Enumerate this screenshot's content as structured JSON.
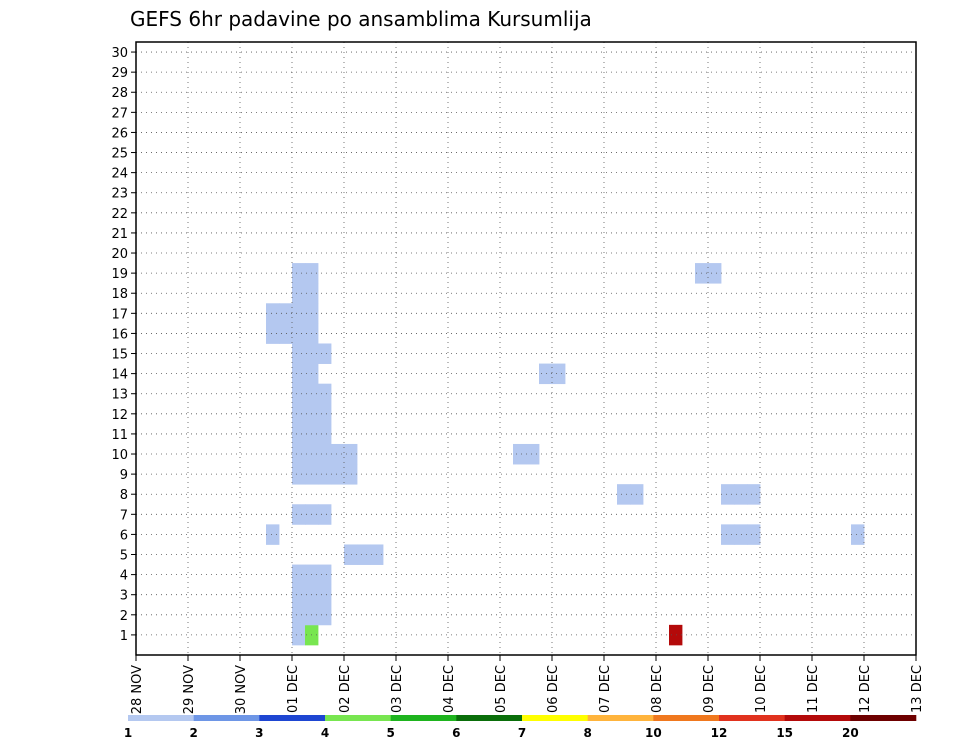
{
  "chart_data": {
    "type": "heatmap",
    "title": "GEFS 6hr padavine po ansamblima Kursumlija",
    "y_ticks": [
      "1",
      "2",
      "3",
      "4",
      "5",
      "6",
      "7",
      "8",
      "9",
      "10",
      "11",
      "12",
      "13",
      "14",
      "15",
      "16",
      "17",
      "18",
      "19",
      "20",
      "21",
      "22",
      "23",
      "24",
      "25",
      "26",
      "27",
      "28",
      "29",
      "30"
    ],
    "x_ticks": [
      "28 NOV",
      "29 NOV",
      "30 NOV",
      "01 DEC",
      "02 DEC",
      "03 DEC",
      "04 DEC",
      "05 DEC",
      "06 DEC",
      "07 DEC",
      "08 DEC",
      "09 DEC",
      "10 DEC",
      "11 DEC",
      "12 DEC",
      "13 DEC"
    ],
    "time_steps": 60,
    "grid": "dotted",
    "legend": "bottom",
    "colorbar": {
      "labels": [
        "1",
        "2",
        "3",
        "4",
        "5",
        "6",
        "7",
        "8",
        "10",
        "12",
        "15",
        "20"
      ],
      "colors": [
        "#b4c8f0",
        "#6e96e6",
        "#1e46d2",
        "#78e650",
        "#1eb41e",
        "#0a6e0a",
        "#ffff00",
        "#ffb43c",
        "#f0781e",
        "#e1321e",
        "#b40a0a",
        "#6e0000"
      ]
    },
    "cells": [
      [
        1,
        12,
        0
      ],
      [
        1,
        13,
        3
      ],
      [
        1,
        41,
        10
      ],
      [
        2,
        12,
        0
      ],
      [
        2,
        13,
        0
      ],
      [
        2,
        14,
        0
      ],
      [
        3,
        12,
        0
      ],
      [
        3,
        13,
        0
      ],
      [
        3,
        14,
        0
      ],
      [
        4,
        12,
        0
      ],
      [
        4,
        13,
        0
      ],
      [
        4,
        14,
        0
      ],
      [
        5,
        16,
        0
      ],
      [
        5,
        17,
        0
      ],
      [
        5,
        18,
        0
      ],
      [
        6,
        10,
        0
      ],
      [
        6,
        45,
        0
      ],
      [
        6,
        46,
        0
      ],
      [
        6,
        47,
        0
      ],
      [
        6,
        55,
        0
      ],
      [
        7,
        12,
        0
      ],
      [
        7,
        13,
        0
      ],
      [
        7,
        14,
        0
      ],
      [
        8,
        37,
        0
      ],
      [
        8,
        38,
        0
      ],
      [
        8,
        45,
        0
      ],
      [
        8,
        46,
        0
      ],
      [
        8,
        47,
        0
      ],
      [
        9,
        12,
        0
      ],
      [
        9,
        13,
        0
      ],
      [
        9,
        14,
        0
      ],
      [
        9,
        15,
        0
      ],
      [
        9,
        16,
        0
      ],
      [
        10,
        12,
        0
      ],
      [
        10,
        13,
        0
      ],
      [
        10,
        14,
        0
      ],
      [
        10,
        15,
        0
      ],
      [
        10,
        16,
        0
      ],
      [
        10,
        29,
        0
      ],
      [
        10,
        30,
        0
      ],
      [
        11,
        12,
        0
      ],
      [
        11,
        13,
        0
      ],
      [
        11,
        14,
        0
      ],
      [
        12,
        12,
        0
      ],
      [
        12,
        13,
        0
      ],
      [
        12,
        14,
        0
      ],
      [
        13,
        12,
        0
      ],
      [
        13,
        13,
        0
      ],
      [
        13,
        14,
        0
      ],
      [
        14,
        12,
        0
      ],
      [
        14,
        13,
        0
      ],
      [
        14,
        31,
        0
      ],
      [
        14,
        32,
        0
      ],
      [
        15,
        12,
        0
      ],
      [
        15,
        13,
        0
      ],
      [
        15,
        14,
        0
      ],
      [
        16,
        10,
        0
      ],
      [
        16,
        11,
        0
      ],
      [
        16,
        12,
        0
      ],
      [
        16,
        13,
        0
      ],
      [
        17,
        10,
        0
      ],
      [
        17,
        11,
        0
      ],
      [
        17,
        12,
        0
      ],
      [
        17,
        13,
        0
      ],
      [
        18,
        12,
        0
      ],
      [
        18,
        13,
        0
      ],
      [
        19,
        12,
        0
      ],
      [
        19,
        13,
        0
      ],
      [
        19,
        43,
        0
      ],
      [
        19,
        44,
        0
      ]
    ]
  }
}
